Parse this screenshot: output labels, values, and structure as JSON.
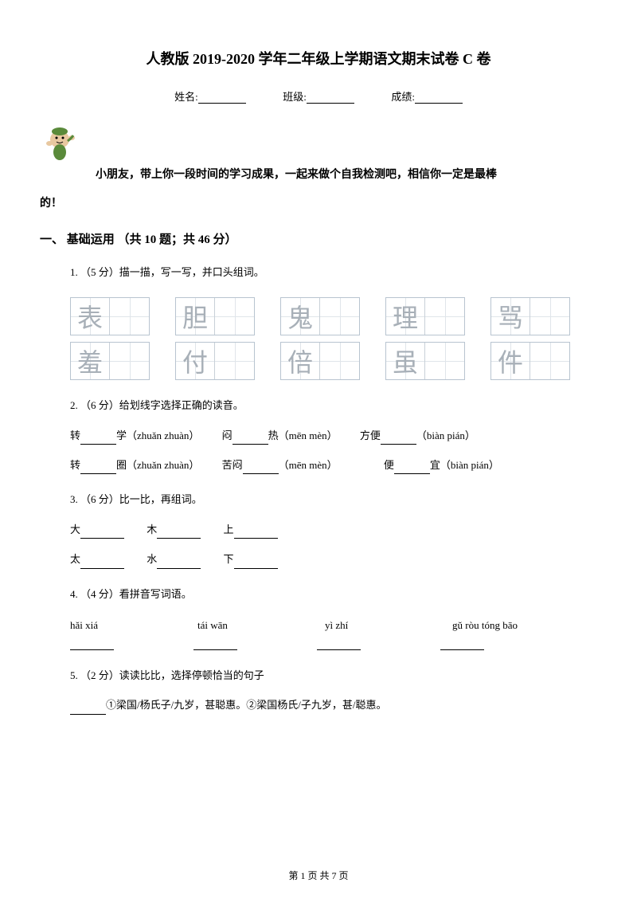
{
  "title": "人教版 2019-2020 学年二年级上学期语文期末试卷 C 卷",
  "info": {
    "name": "姓名:",
    "class": "班级:",
    "score": "成绩:"
  },
  "intro": "小朋友，带上你一段时间的学习成果，一起来做个自我检测吧，相信你一定是最棒",
  "intro_tail": "的！",
  "section": "一、 基础运用 （共 10 题；共 46 分）",
  "q1": {
    "num": "1. （5 分）",
    "text": "描一描，写一写，并口头组词。"
  },
  "chars_row1": [
    "表",
    "胆",
    "鬼",
    "理",
    "骂"
  ],
  "chars_row2": [
    "羞",
    "付",
    "倍",
    "虽",
    "件"
  ],
  "q2": {
    "num": "2. （6 分）",
    "text": "给划线字选择正确的读音。",
    "line1": {
      "a": "转",
      "a2": "学（zhuǎn  zhuàn）",
      "b": "闷",
      "b2": "热（mēn  mèn）",
      "c": "方便",
      "c2": "（biàn  pián）"
    },
    "line2": {
      "a": "转",
      "a2": "圈（zhuǎn  zhuàn）",
      "b": "苦闷",
      "b2": "（mēn  mèn）",
      "c": "便",
      "c2": "宜（biàn  pián）"
    }
  },
  "q3": {
    "num": "3. （6 分）",
    "text": "比一比，再组词。",
    "line1": [
      "大",
      "木",
      "上"
    ],
    "line2": [
      "太",
      "水",
      "下"
    ]
  },
  "q4": {
    "num": "4. （4 分）",
    "text": "看拼音写词语。",
    "pinyin": [
      "hǎi xiá",
      "tái wān",
      "yì zhí",
      "gǔ ròu tóng bāo"
    ]
  },
  "q5": {
    "num": "5. （2 分）",
    "text": "读读比比，选择停顿恰当的句子",
    "options": "①梁国/杨氏子/九岁，甚聪惠。②梁国杨氏/子九岁，甚/聪惠。"
  },
  "footer": "第 1 页 共 7 页",
  "colors": {
    "text": "#000000",
    "char_border": "#b8c4d0",
    "char_guide": "#e0e5ea",
    "practice_char": "#a8b0b8",
    "icon_green": "#5a8a3a",
    "icon_skin": "#e8c8a0"
  }
}
